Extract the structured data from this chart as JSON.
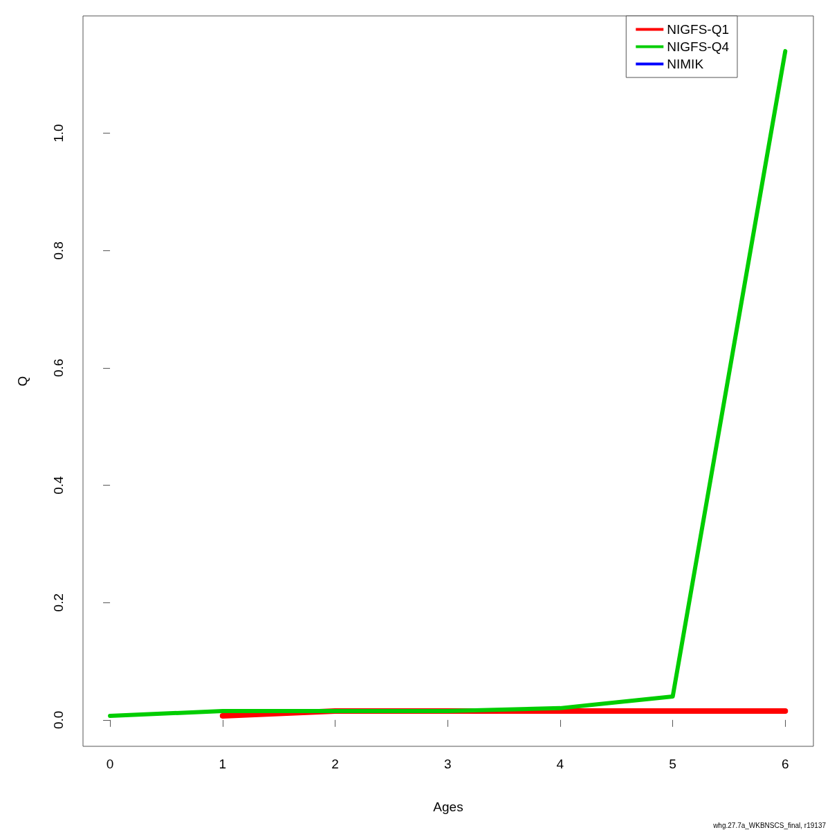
{
  "chart_data": {
    "type": "line",
    "xlabel": "Ages",
    "ylabel": "Q",
    "x": [
      0,
      1,
      2,
      3,
      4,
      5,
      6
    ],
    "series": [
      {
        "name": "NIGFS-Q1",
        "color": "#ff0000",
        "values": [
          null,
          0.007,
          0.015,
          0.015,
          0.015,
          0.015,
          0.015
        ]
      },
      {
        "name": "NIGFS-Q4",
        "color": "#00cd00",
        "values": [
          0.007,
          0.015,
          0.015,
          0.015,
          0.02,
          0.04,
          1.14
        ]
      },
      {
        "name": "NIMIK",
        "color": "#0000ff",
        "values": [
          null,
          null,
          null,
          null,
          null,
          null,
          null
        ]
      }
    ],
    "xlim": [
      -0.24,
      6.25
    ],
    "xticks": [
      0,
      1,
      2,
      3,
      4,
      5,
      6
    ],
    "ylim": [
      -0.045,
      1.2
    ],
    "yticks": [
      {
        "value": 0,
        "label": "0.0"
      },
      {
        "value": 0.2,
        "label": "0.2"
      },
      {
        "value": 0.4,
        "label": "0.4"
      },
      {
        "value": 0.6,
        "label": "0.6"
      },
      {
        "value": 0.8,
        "label": "0.8"
      },
      {
        "value": 1,
        "label": "1.0"
      }
    ],
    "grid": false,
    "legend": "top right",
    "marker": "none",
    "line_style": "solid",
    "annotations": [
      "whg.27.7a_WKBNSCS_final, r19137"
    ]
  }
}
